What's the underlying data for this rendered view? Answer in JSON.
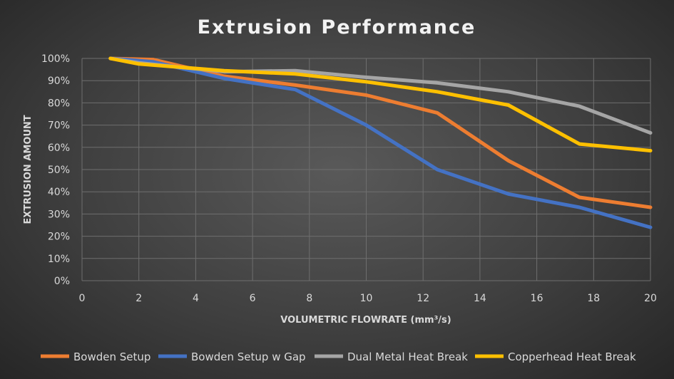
{
  "chart_data": {
    "type": "line",
    "title": "Extrusion Performance",
    "xlabel": "VOLUMETRIC FLOWRATE (mm³/s)",
    "ylabel": "EXTRUSION AMOUNT",
    "xlim": [
      0,
      20
    ],
    "ylim": [
      0,
      100
    ],
    "x_ticks": [
      "0",
      "2",
      "4",
      "6",
      "8",
      "10",
      "12",
      "14",
      "16",
      "18",
      "20"
    ],
    "y_ticks": [
      "0%",
      "10%",
      "20%",
      "30%",
      "40%",
      "50%",
      "60%",
      "70%",
      "80%",
      "90%",
      "100%"
    ],
    "grid": true,
    "legend_position": "bottom",
    "series": [
      {
        "name": "Bowden Setup",
        "color": "#ed7d31",
        "points": [
          [
            1,
            100
          ],
          [
            2.5,
            99.5
          ],
          [
            5,
            92
          ],
          [
            7.5,
            88
          ],
          [
            10,
            83.5
          ],
          [
            12.5,
            75.5
          ],
          [
            15,
            54
          ],
          [
            17.5,
            37.5
          ],
          [
            20,
            33
          ]
        ]
      },
      {
        "name": "Bowden Setup w Gap",
        "color": "#4472c4",
        "points": [
          [
            1,
            100
          ],
          [
            2.5,
            98.5
          ],
          [
            5,
            91
          ],
          [
            7.5,
            86
          ],
          [
            10,
            70
          ],
          [
            12.5,
            50
          ],
          [
            15,
            39
          ],
          [
            17.5,
            33
          ],
          [
            20,
            24
          ]
        ]
      },
      {
        "name": "Dual Metal Heat Break",
        "color": "#a5a5a5",
        "points": [
          [
            1,
            100
          ],
          [
            2,
            98
          ],
          [
            3.5,
            96
          ],
          [
            5,
            94
          ],
          [
            7.5,
            94.5
          ],
          [
            10,
            91.5
          ],
          [
            12.5,
            89
          ],
          [
            15,
            85
          ],
          [
            17.5,
            78.5
          ],
          [
            20,
            66.5
          ]
        ]
      },
      {
        "name": "Copperhead Heat Break",
        "color": "#ffc000",
        "points": [
          [
            1,
            100
          ],
          [
            2,
            97.5
          ],
          [
            3.5,
            96
          ],
          [
            5,
            94.5
          ],
          [
            7.5,
            93
          ],
          [
            10,
            89.5
          ],
          [
            12.5,
            85
          ],
          [
            15,
            79
          ],
          [
            17.5,
            61.5
          ],
          [
            20,
            58.5
          ]
        ]
      }
    ]
  }
}
